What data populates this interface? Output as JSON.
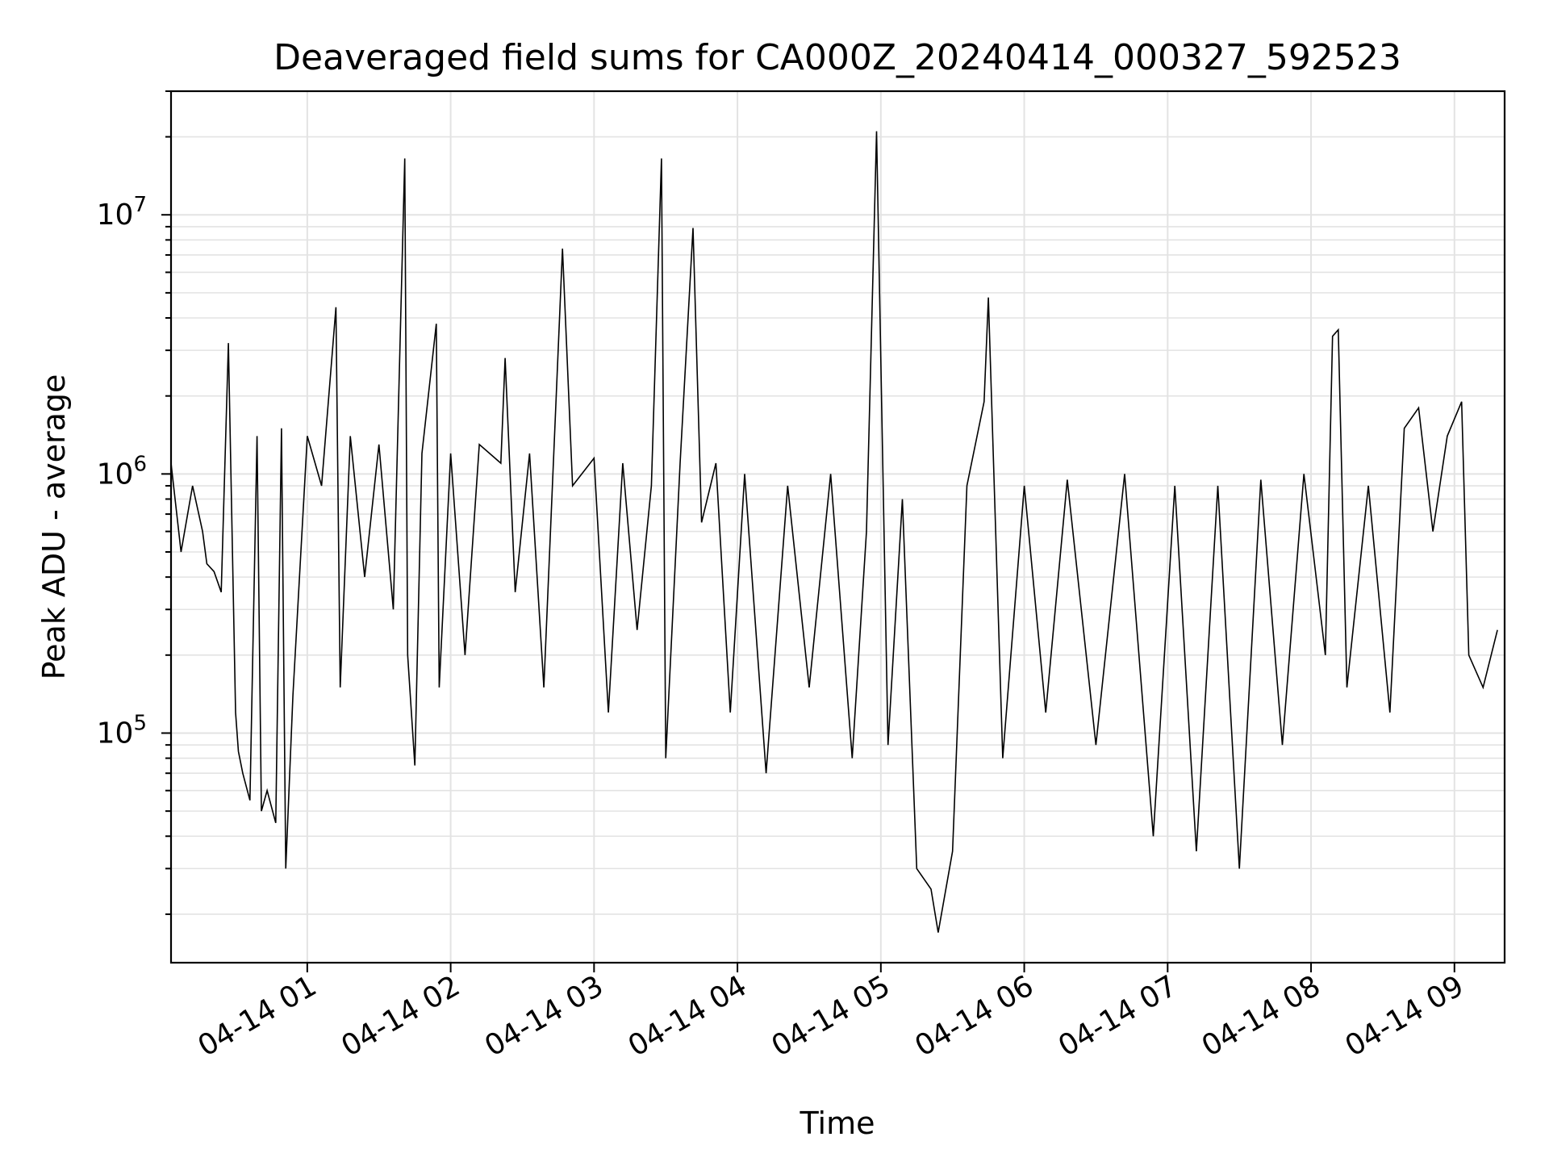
{
  "chart_data": {
    "type": "line",
    "title": "Deaveraged field sums for CA000Z_20240414_000327_592523",
    "xlabel": "Time",
    "ylabel": "Peak ADU - average",
    "y_scale": "log",
    "ylim": [
      13000,
      30000000
    ],
    "xlim": [
      "04-14 00:03",
      "04-14 09:21"
    ],
    "grid": true,
    "series_color": "#000000",
    "x_ticks": [
      "04-14 01",
      "04-14 02",
      "04-14 03",
      "04-14 04",
      "04-14 05",
      "04-14 06",
      "04-14 07",
      "04-14 08",
      "04-14 09"
    ],
    "x_tick_hours": [
      1,
      2,
      3,
      4,
      5,
      6,
      7,
      8,
      9
    ],
    "y_ticks": [
      {
        "value": 100000,
        "base": "10",
        "exp": "5"
      },
      {
        "value": 1000000,
        "base": "10",
        "exp": "6"
      },
      {
        "value": 10000000,
        "base": "10",
        "exp": "7"
      }
    ],
    "series": [
      {
        "x_hours": [
          0.05,
          0.12,
          0.2,
          0.27,
          0.3,
          0.35,
          0.4,
          0.45,
          0.5,
          0.52,
          0.55,
          0.6,
          0.65,
          0.68,
          0.72,
          0.78,
          0.82,
          0.85,
          0.9,
          1.0,
          1.1,
          1.2,
          1.23,
          1.3,
          1.4,
          1.5,
          1.6,
          1.68,
          1.7,
          1.75,
          1.8,
          1.9,
          1.92,
          2.0,
          2.1,
          2.2,
          2.35,
          2.38,
          2.45,
          2.55,
          2.65,
          2.78,
          2.85,
          3.0,
          3.1,
          3.2,
          3.3,
          3.4,
          3.47,
          3.5,
          3.6,
          3.69,
          3.75,
          3.85,
          3.95,
          4.05,
          4.2,
          4.35,
          4.5,
          4.65,
          4.8,
          4.9,
          4.97,
          5.05,
          5.15,
          5.25,
          5.35,
          5.4,
          5.5,
          5.6,
          5.72,
          5.75,
          5.85,
          6.0,
          6.15,
          6.3,
          6.5,
          6.7,
          6.9,
          7.05,
          7.2,
          7.35,
          7.5,
          7.65,
          7.8,
          7.95,
          8.1,
          8.15,
          8.19,
          8.25,
          8.4,
          8.55,
          8.65,
          8.75,
          8.85,
          8.95,
          9.05,
          9.1,
          9.2,
          9.3
        ],
        "y_values": [
          1100000,
          500000,
          900000,
          600000,
          450000,
          420000,
          350000,
          3200000,
          120000,
          85000,
          70000,
          55000,
          1400000,
          50000,
          60000,
          45000,
          1500000,
          30000,
          140000,
          1400000,
          900000,
          4400000,
          150000,
          1400000,
          400000,
          1300000,
          300000,
          16500000,
          200000,
          75000,
          1200000,
          3800000,
          150000,
          1200000,
          200000,
          1300000,
          1100000,
          2800000,
          350000,
          1200000,
          150000,
          7400000,
          900000,
          1150000,
          120000,
          1100000,
          250000,
          900000,
          16500000,
          80000,
          1100000,
          8900000,
          650000,
          1100000,
          120000,
          1000000,
          70000,
          900000,
          150000,
          1000000,
          80000,
          600000,
          21000000,
          90000,
          800000,
          30000,
          25000,
          17000,
          35000,
          900000,
          1900000,
          4800000,
          80000,
          900000,
          120000,
          950000,
          90000,
          1000000,
          40000,
          900000,
          35000,
          900000,
          30000,
          950000,
          90000,
          1000000,
          200000,
          3400000,
          3600000,
          150000,
          900000,
          120000,
          1500000,
          1800000,
          600000,
          1400000,
          1900000,
          200000,
          150000,
          250000
        ]
      }
    ]
  }
}
